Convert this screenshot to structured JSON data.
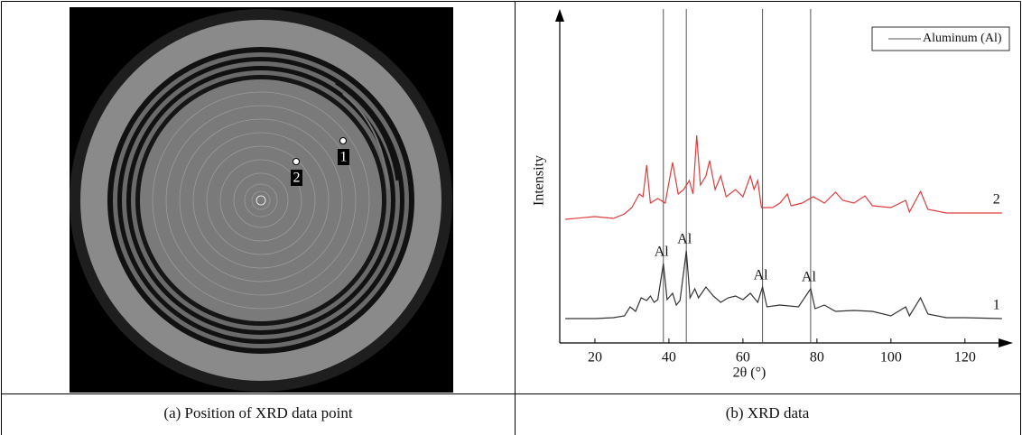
{
  "left_panel": {
    "caption": "(a) Position of XRD data point",
    "point_labels": [
      "1",
      "2"
    ]
  },
  "right_panel": {
    "caption": "(b) XRD data"
  },
  "chart_data": {
    "type": "line",
    "x_label": "2θ (°)",
    "y_label": "Intensity",
    "xlim": [
      10.5,
      132
    ],
    "xticks": [
      20,
      40,
      60,
      80,
      100,
      120
    ],
    "ylim": [
      0,
      365
    ],
    "legend": "top-right",
    "reference_lines": {
      "name": "Aluminum (Al)",
      "color": "#555555",
      "x": [
        38.5,
        44.7,
        65.3,
        78.3
      ],
      "labels": [
        "Al",
        "Al",
        "Al",
        "Al"
      ]
    },
    "series": [
      {
        "name": "1",
        "color": "#333333",
        "x": [
          12,
          20,
          25,
          28,
          29.5,
          31,
          32.5,
          34,
          35,
          36,
          37,
          38.5,
          39.5,
          41,
          42,
          43,
          44.7,
          45.7,
          47,
          48,
          50,
          52,
          54,
          56,
          58,
          60,
          62,
          63,
          64,
          65.3,
          66.5,
          70,
          75,
          78.3,
          79.5,
          82,
          85,
          90,
          95,
          100,
          104,
          105,
          108,
          110,
          115,
          120,
          130
        ],
        "values": [
          27,
          27,
          28,
          30,
          40,
          35,
          50,
          47,
          52,
          45,
          48,
          88,
          48,
          55,
          42,
          47,
          102,
          50,
          60,
          50,
          62,
          52,
          45,
          50,
          52,
          48,
          55,
          50,
          45,
          62,
          40,
          42,
          40,
          60,
          38,
          42,
          35,
          36,
          35,
          30,
          40,
          30,
          50,
          32,
          28,
          28,
          27
        ]
      },
      {
        "name": "2",
        "color": "#e03c3c",
        "x": [
          12,
          20,
          25,
          28,
          30,
          32,
          33,
          34,
          35,
          37,
          39,
          41,
          42.5,
          44,
          45.5,
          46.5,
          47.5,
          48.5,
          50,
          51,
          52.5,
          54,
          55.5,
          58,
          60,
          62,
          63,
          64,
          65,
          68,
          70,
          72,
          73,
          76,
          79,
          82,
          85,
          87,
          90,
          93,
          95,
          100,
          104,
          105,
          108,
          110,
          115,
          120,
          130
        ],
        "values": [
          137,
          140,
          138,
          143,
          150,
          165,
          162,
          197,
          155,
          160,
          155,
          200,
          165,
          170,
          180,
          165,
          230,
          175,
          185,
          202,
          170,
          185,
          162,
          170,
          162,
          185,
          170,
          180,
          150,
          150,
          155,
          165,
          152,
          155,
          162,
          155,
          167,
          158,
          155,
          163,
          152,
          150,
          158,
          145,
          168,
          148,
          144,
          144,
          144
        ]
      }
    ]
  }
}
